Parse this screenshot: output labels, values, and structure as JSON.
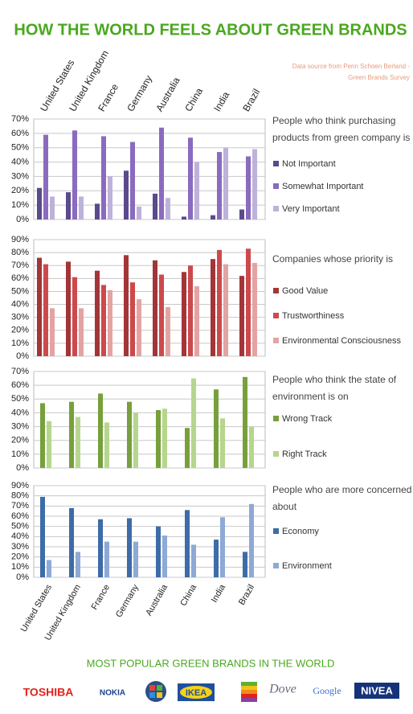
{
  "title": "HOW THE WORLD FEELS ABOUT GREEN BRANDS",
  "source": "Data source from Penn Schoen Berland - Green Brands Survey",
  "brands_title": "MOST POPULAR GREEN BRANDS IN THE WORLD",
  "brands": [
    "TOSHIBA",
    "NOKIA",
    "IKEA",
    "Dove",
    "Google",
    "NIVEA"
  ],
  "chart_data": [
    {
      "type": "bar",
      "title": "People who think purchasing products from green company is",
      "categories": [
        "United States",
        "United Kingdom",
        "France",
        "Germany",
        "Australia",
        "China",
        "India",
        "Brazil"
      ],
      "series": [
        {
          "name": "Not Important",
          "color": "#5b4a8c",
          "values": [
            22,
            19,
            11,
            34,
            18,
            2,
            3,
            7
          ]
        },
        {
          "name": "Somewhat Important",
          "color": "#8a6bbf",
          "values": [
            59,
            62,
            58,
            54,
            64,
            57,
            47,
            44
          ]
        },
        {
          "name": "Very Important",
          "color": "#bdb2da",
          "values": [
            16,
            16,
            30,
            9,
            15,
            40,
            50,
            49
          ]
        }
      ],
      "ylim": [
        0,
        70
      ],
      "yticks": [
        {
          "value": 0,
          "label": "0%"
        },
        {
          "value": 10,
          "label": "10%"
        },
        {
          "value": 20,
          "label": "20%"
        },
        {
          "value": 30,
          "label": "30%"
        },
        {
          "value": 40,
          "label": "40%"
        },
        {
          "value": 50,
          "label": "50%"
        },
        {
          "value": 60,
          "label": "60%"
        },
        {
          "value": 70,
          "label": "70%"
        }
      ],
      "grid": true
    },
    {
      "type": "bar",
      "title": "Companies whose priority is",
      "series": [
        {
          "name": "Good Value",
          "color": "#a33538",
          "values": [
            76,
            73,
            66,
            78,
            74,
            65,
            75,
            62
          ]
        },
        {
          "name": "Trustworthiness",
          "color": "#cc4a4c",
          "values": [
            71,
            61,
            55,
            57,
            63,
            70,
            82,
            83
          ]
        },
        {
          "name": "Environmental Consciousness",
          "color": "#e4a3a3",
          "values": [
            37,
            37,
            51,
            44,
            38,
            54,
            71,
            72
          ]
        }
      ],
      "ylim": [
        0,
        90
      ],
      "yticks": [
        {
          "value": 0,
          "label": "0%"
        },
        {
          "value": 10,
          "label": "10%"
        },
        {
          "value": 20,
          "label": "20%"
        },
        {
          "value": 30,
          "label": "30%"
        },
        {
          "value": 40,
          "label": "40%"
        },
        {
          "value": 50,
          "label": "50%"
        },
        {
          "value": 60,
          "label": "60%"
        },
        {
          "value": 70,
          "label": "70%"
        },
        {
          "value": 80,
          "label": "80%"
        },
        {
          "value": 90,
          "label": "90%"
        }
      ],
      "grid": true
    },
    {
      "type": "bar",
      "title": "People who think the state of environment is on",
      "series": [
        {
          "name": "Wrong Track",
          "color": "#77a03c",
          "values": [
            47,
            48,
            54,
            48,
            42,
            29,
            57,
            66
          ]
        },
        {
          "name": "Right Track",
          "color": "#b5d68c",
          "values": [
            34,
            37,
            33,
            40,
            43,
            65,
            36,
            30
          ]
        }
      ],
      "ylim": [
        0,
        70
      ],
      "yticks": [
        {
          "value": 0,
          "label": "0%"
        },
        {
          "value": 10,
          "label": "10%"
        },
        {
          "value": 20,
          "label": "20%"
        },
        {
          "value": 30,
          "label": "30%"
        },
        {
          "value": 40,
          "label": "40%"
        },
        {
          "value": 50,
          "label": "50%"
        },
        {
          "value": 60,
          "label": "60%"
        },
        {
          "value": 70,
          "label": "70%"
        }
      ],
      "grid": true
    },
    {
      "type": "bar",
      "title": "People who are more concerned about",
      "categories": [
        "United States",
        "United Kingdom",
        "France",
        "Germany",
        "Australia",
        "China",
        "India",
        "Brazil"
      ],
      "series": [
        {
          "name": "Economy",
          "color": "#3d6ca8",
          "values": [
            79,
            68,
            57,
            58,
            50,
            66,
            37,
            25
          ]
        },
        {
          "name": "Environment",
          "color": "#8ea9d6",
          "values": [
            17,
            25,
            35,
            35,
            41,
            32,
            59,
            72
          ]
        }
      ],
      "ylim": [
        0,
        90
      ],
      "yticks": [
        {
          "value": 0,
          "label": "0%"
        },
        {
          "value": 10,
          "label": "10%"
        },
        {
          "value": 20,
          "label": "20%"
        },
        {
          "value": 30,
          "label": "30%"
        },
        {
          "value": 40,
          "label": "40%"
        },
        {
          "value": 50,
          "label": "50%"
        },
        {
          "value": 60,
          "label": "60%"
        },
        {
          "value": 70,
          "label": "70%"
        },
        {
          "value": 80,
          "label": "80%"
        },
        {
          "value": 90,
          "label": "90%"
        }
      ],
      "grid": true
    }
  ]
}
